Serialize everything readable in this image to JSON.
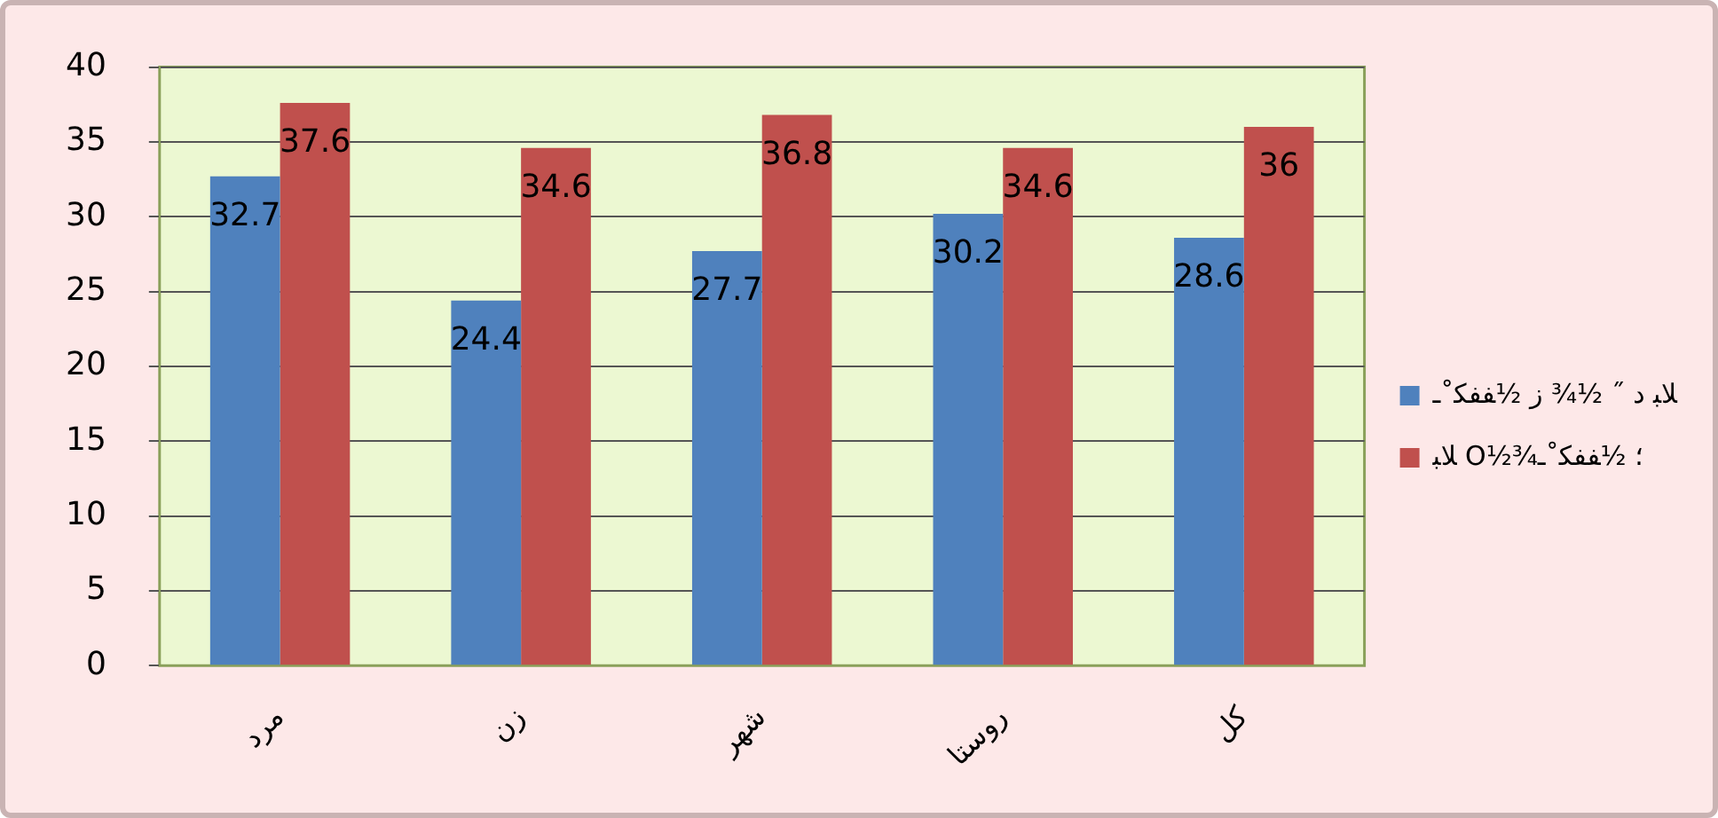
{
  "chart_data": {
    "type": "bar",
    "categories": [
      "مرد",
      "زن",
      "شهر",
      "روستا",
      "کل"
    ],
    "series": [
      {
        "name": "ﻼﺒ د ˝ ½¾ ز ½ﻔﻔﮑ˚ـ",
        "color": "#4f81bd",
        "values": [
          32.7,
          24.4,
          27.7,
          30.2,
          28.6
        ]
      },
      {
        "name": "ﻼﺒ O½¾؛ ½ﻔﻔﮑ˚ـ",
        "color": "#c0504d",
        "values": [
          37.6,
          34.6,
          36.8,
          34.6,
          36
        ]
      }
    ],
    "ylim": [
      0,
      40
    ],
    "yticks": [
      0,
      5,
      10,
      15,
      20,
      25,
      30,
      35,
      40
    ],
    "grid": "y",
    "legend": "right",
    "data_labels": true
  }
}
